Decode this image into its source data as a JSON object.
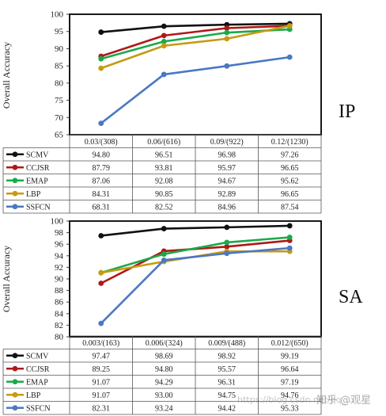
{
  "colors": {
    "SCMV": "#111111",
    "CCJSR": "#b01818",
    "EMAP": "#1aaa4a",
    "LBP": "#c79a12",
    "SSFCN": "#4a78c2"
  },
  "watermark": "https://blog.csdn.net/qq_…",
  "watermark_logo": "知乎 @观星",
  "chart_data": [
    {
      "type": "line",
      "panel_label": "IP",
      "ylabel": "Overall Accuracy",
      "ylim": [
        65,
        100
      ],
      "yticks": [
        65,
        70,
        75,
        80,
        85,
        90,
        95,
        100
      ],
      "categories": [
        "0.03/(308)",
        "0.06/(616)",
        "0.09/(922)",
        "0.12/(1230)"
      ],
      "series": [
        {
          "name": "SCMV",
          "values": [
            94.8,
            96.51,
            96.98,
            97.26
          ],
          "labels": [
            "94.80",
            "96.51",
            "96.98",
            "97.26"
          ]
        },
        {
          "name": "CCJSR",
          "values": [
            87.79,
            93.81,
            95.97,
            96.65
          ],
          "labels": [
            "87.79",
            "93.81",
            "95.97",
            "96.65"
          ]
        },
        {
          "name": "EMAP",
          "values": [
            87.06,
            92.08,
            94.67,
            95.62
          ],
          "labels": [
            "87.06",
            "92.08",
            "94.67",
            "95.62"
          ]
        },
        {
          "name": "LBP",
          "values": [
            84.31,
            90.85,
            92.89,
            96.65
          ],
          "labels": [
            "84.31",
            "90.85",
            "92.89",
            "96.65"
          ]
        },
        {
          "name": "SSFCN",
          "values": [
            68.31,
            82.52,
            84.96,
            87.54
          ],
          "labels": [
            "68.31",
            "82.52",
            "84.96",
            "87.54"
          ]
        }
      ]
    },
    {
      "type": "line",
      "panel_label": "SA",
      "ylabel": "Overall Accuracy",
      "ylim": [
        80,
        100
      ],
      "yticks": [
        80,
        82,
        84,
        86,
        88,
        90,
        92,
        94,
        96,
        98,
        100
      ],
      "categories": [
        "0.003/(163)",
        "0.006/(324)",
        "0.009/(488)",
        "0.012/(650)"
      ],
      "series": [
        {
          "name": "SCMV",
          "values": [
            97.47,
            98.69,
            98.92,
            99.19
          ],
          "labels": [
            "97.47",
            "98.69",
            "98.92",
            "99.19"
          ]
        },
        {
          "name": "CCJSR",
          "values": [
            89.25,
            94.8,
            95.57,
            96.64
          ],
          "labels": [
            "89.25",
            "94.80",
            "95.57",
            "96.64"
          ]
        },
        {
          "name": "EMAP",
          "values": [
            91.07,
            94.29,
            96.31,
            97.19
          ],
          "labels": [
            "91.07",
            "94.29",
            "96.31",
            "97.19"
          ]
        },
        {
          "name": "LBP",
          "values": [
            91.07,
            93.0,
            94.75,
            94.76
          ],
          "labels": [
            "91.07",
            "93.00",
            "94.75",
            "94.76"
          ]
        },
        {
          "name": "SSFCN",
          "values": [
            82.31,
            93.24,
            94.42,
            95.33
          ],
          "labels": [
            "82.31",
            "93.24",
            "94.42",
            "95.33"
          ]
        }
      ]
    }
  ]
}
